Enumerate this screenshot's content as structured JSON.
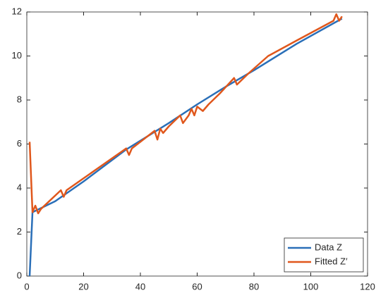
{
  "chart_data": {
    "type": "line",
    "series": [
      {
        "name": "Data Z",
        "color": "#2a6fb8",
        "x": [
          1,
          2,
          10,
          20,
          35,
          50,
          60,
          70,
          80,
          95,
          111
        ],
        "values": [
          0,
          2.9,
          3.4,
          4.3,
          5.75,
          6.95,
          7.8,
          8.6,
          9.35,
          10.55,
          11.7
        ]
      },
      {
        "name": "Fitted Z′",
        "color": "#e0571c",
        "x": [
          1,
          2,
          3,
          4,
          5,
          12,
          13,
          14,
          35,
          36,
          37,
          45,
          46,
          47,
          48,
          50,
          54,
          55,
          57,
          58,
          59,
          60,
          62,
          64,
          68,
          73,
          74,
          78,
          85,
          95,
          108,
          109,
          110,
          111
        ],
        "values": [
          6.1,
          2.9,
          3.2,
          2.85,
          3.05,
          3.9,
          3.6,
          3.9,
          5.8,
          5.5,
          5.8,
          6.6,
          6.2,
          6.7,
          6.5,
          6.8,
          7.3,
          6.95,
          7.3,
          7.6,
          7.3,
          7.7,
          7.5,
          7.8,
          8.3,
          9.0,
          8.7,
          9.2,
          10.0,
          10.7,
          11.6,
          11.9,
          11.6,
          11.8
        ]
      }
    ],
    "xlim": [
      0,
      120
    ],
    "xticks": [
      0,
      20,
      40,
      60,
      80,
      100,
      120
    ],
    "ylim": [
      0,
      12
    ],
    "yticks": [
      0,
      2,
      4,
      6,
      8,
      10,
      12
    ],
    "grid": false,
    "legend": "lower right"
  }
}
